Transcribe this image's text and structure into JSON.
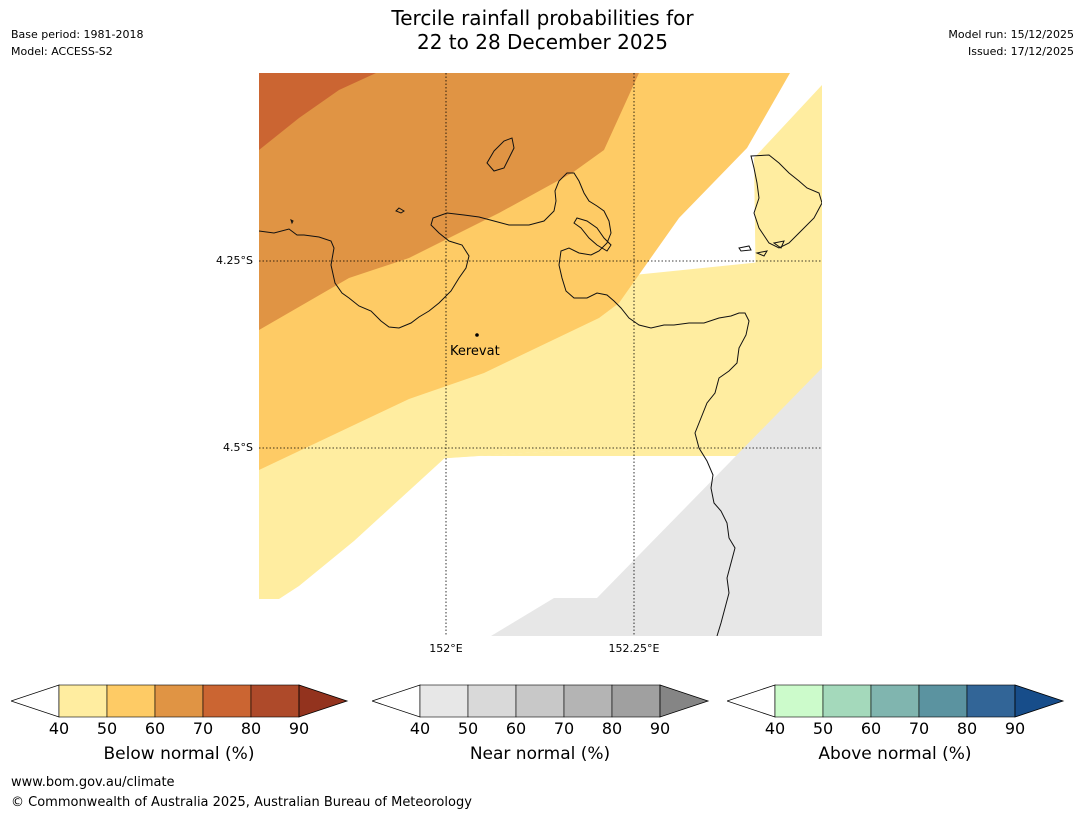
{
  "meta_left": {
    "base_period": "Base period: 1981-2018",
    "model": "Model: ACCESS-S2"
  },
  "meta_right": {
    "model_run": "Model run: 15/12/2025",
    "issued": "Issued: 17/12/2025"
  },
  "title": {
    "line1": "Tercile rainfall probabilities for",
    "line2": "22 to 28 December 2025"
  },
  "map": {
    "lat_labels": [
      "4.25°S",
      "4.5°S"
    ],
    "lon_labels": [
      "152°E",
      "152.25°E"
    ],
    "place": "Kerevat"
  },
  "colorbars": [
    {
      "title": "Below normal (%)",
      "ticks": [
        "40",
        "50",
        "60",
        "70",
        "80",
        "90"
      ],
      "colors": [
        "#ffeda0",
        "#fecb65",
        "#e09444",
        "#cb6532",
        "#ae4a2a",
        "#93331e"
      ]
    },
    {
      "title": "Near normal (%)",
      "ticks": [
        "40",
        "50",
        "60",
        "70",
        "80",
        "90"
      ],
      "colors": [
        "#e7e7e7",
        "#d9d9d9",
        "#c8c8c8",
        "#b4b4b4",
        "#a0a0a0",
        "#858585"
      ]
    },
    {
      "title": "Above normal (%)",
      "ticks": [
        "40",
        "50",
        "60",
        "70",
        "80",
        "90"
      ],
      "colors": [
        "#ccfbcb",
        "#a4d9bb",
        "#80b5af",
        "#5b93a0",
        "#326597",
        "#174d8a"
      ]
    }
  ],
  "footer": {
    "url": "www.bom.gov.au/climate",
    "copyright": "© Commonwealth of Australia 2025, Australian Bureau of Meteorology"
  },
  "colors": {
    "below_40": "#ffeda0",
    "below_50": "#fecb65",
    "below_60": "#e09444",
    "below_70": "#cb6532",
    "near_40": "#e7e7e7"
  }
}
